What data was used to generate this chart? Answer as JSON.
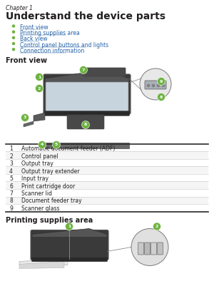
{
  "chapter_label": "Chapter 1",
  "title": "Understand the device parts",
  "bullet_links": [
    "Front view",
    "Printing supplies area",
    "Back view",
    "Control panel buttons and lights",
    "Connection information"
  ],
  "section1": "Front view",
  "table_rows": [
    [
      "1",
      "Automatic document feeder (ADF)"
    ],
    [
      "2",
      "Control panel"
    ],
    [
      "3",
      "Output tray"
    ],
    [
      "4",
      "Output tray extender"
    ],
    [
      "5",
      "Input tray"
    ],
    [
      "6",
      "Print cartridge door"
    ],
    [
      "7",
      "Scanner lid"
    ],
    [
      "8",
      "Document feeder tray"
    ],
    [
      "9",
      "Scanner glass"
    ]
  ],
  "section2": "Printing supplies area",
  "bg_color": "#ffffff",
  "text_color": "#231f20",
  "link_color": "#2563a8",
  "bullet_color": "#6db33f",
  "table_line_color": "#c8c8c8",
  "table_header_color": "#2b2b2b",
  "chapter_fontsize": 5.5,
  "title_fontsize": 10,
  "bullet_fontsize": 5.5,
  "section_fontsize": 7,
  "table_fontsize": 5.5
}
